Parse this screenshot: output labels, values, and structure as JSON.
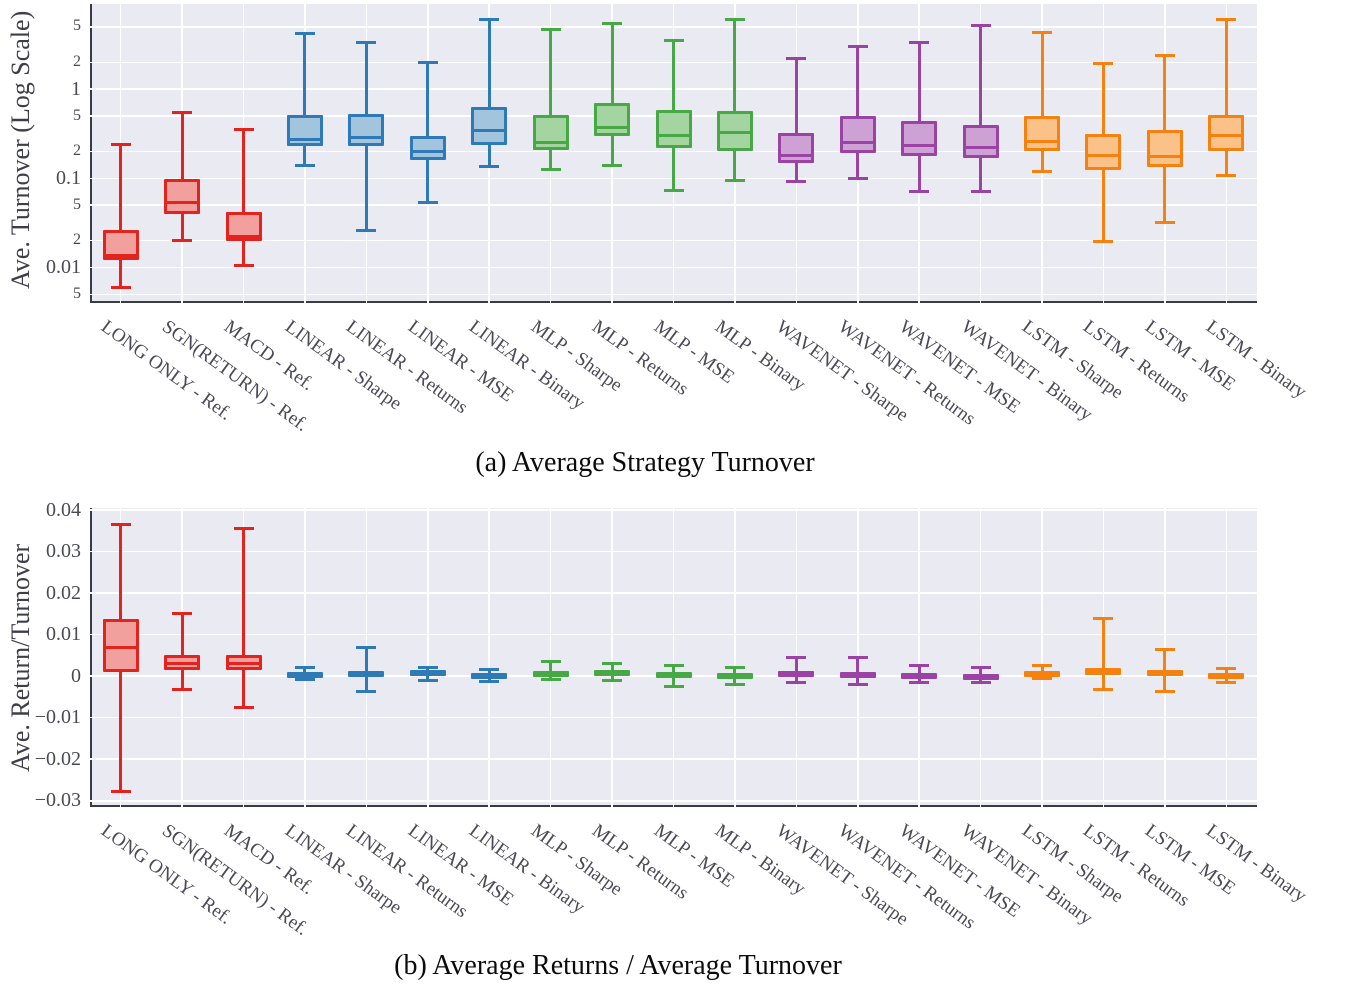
{
  "captions": {
    "a": "(a) Average Strategy Turnover",
    "b": "(b) Average Returns / Average Turnover"
  },
  "palette": {
    "red": {
      "edge": "#e2231e",
      "fill": "#f1a09e"
    },
    "blue": {
      "edge": "#2d7ab7",
      "fill": "#a2c4dd"
    },
    "green": {
      "edge": "#46a946",
      "fill": "#a4d5a1"
    },
    "purple": {
      "edge": "#9b42a5",
      "fill": "#cda1d4"
    },
    "orange": {
      "edge": "#f5820e",
      "fill": "#fac189"
    }
  },
  "categories": [
    "LONG ONLY - Ref.",
    "SGN(RETURN) - Ref.",
    "MACD - Ref.",
    "LINEAR - Sharpe",
    "LINEAR - Returns",
    "LINEAR - MSE",
    "LINEAR - Binary",
    "MLP - Sharpe",
    "MLP - Returns",
    "MLP - MSE",
    "MLP - Binary",
    "WAVENET - Sharpe",
    "WAVENET - Returns",
    "WAVENET - MSE",
    "WAVENET - Binary",
    "LSTM - Sharpe",
    "LSTM - Returns",
    "LSTM - MSE",
    "LSTM - Binary"
  ],
  "category_colors": [
    "red",
    "red",
    "red",
    "blue",
    "blue",
    "blue",
    "blue",
    "green",
    "green",
    "green",
    "green",
    "purple",
    "purple",
    "purple",
    "purple",
    "orange",
    "orange",
    "orange",
    "orange"
  ],
  "chart_data": [
    {
      "id": "turnover",
      "type": "box",
      "title": "Average Strategy Turnover",
      "ylabel": "Ave. Turnover (Log Scale)",
      "yscale": "log",
      "ylim": [
        0.004,
        9
      ],
      "grid": true,
      "yticks": [
        {
          "value": 5,
          "label": "5",
          "major": false
        },
        {
          "value": 2,
          "label": "2",
          "major": false
        },
        {
          "value": 1,
          "label": "1",
          "major": true
        },
        {
          "value": 0.5,
          "label": "5",
          "major": false
        },
        {
          "value": 0.2,
          "label": "2",
          "major": false
        },
        {
          "value": 0.1,
          "label": "0.1",
          "major": true
        },
        {
          "value": 0.05,
          "label": "5",
          "major": false
        },
        {
          "value": 0.02,
          "label": "2",
          "major": false
        },
        {
          "value": 0.01,
          "label": "0.01",
          "major": true
        },
        {
          "value": 0.005,
          "label": "5",
          "major": false
        }
      ],
      "boxes": [
        {
          "category": "LONG ONLY - Ref.",
          "color": "red",
          "whislo": 0.006,
          "q1": 0.012,
          "med": 0.0135,
          "q3": 0.026,
          "whishi": 0.24
        },
        {
          "category": "SGN(RETURN) - Ref.",
          "color": "red",
          "whislo": 0.02,
          "q1": 0.04,
          "med": 0.053,
          "q3": 0.098,
          "whishi": 0.55
        },
        {
          "category": "MACD - Ref.",
          "color": "red",
          "whislo": 0.0105,
          "q1": 0.02,
          "med": 0.022,
          "q3": 0.042,
          "whishi": 0.35
        },
        {
          "category": "LINEAR - Sharpe",
          "color": "blue",
          "whislo": 0.14,
          "q1": 0.23,
          "med": 0.27,
          "q3": 0.51,
          "whishi": 4.2
        },
        {
          "category": "LINEAR - Returns",
          "color": "blue",
          "whislo": 0.026,
          "q1": 0.23,
          "med": 0.29,
          "q3": 0.52,
          "whishi": 3.3
        },
        {
          "category": "LINEAR - MSE",
          "color": "blue",
          "whislo": 0.054,
          "q1": 0.16,
          "med": 0.2,
          "q3": 0.3,
          "whishi": 2.0
        },
        {
          "category": "LINEAR - Binary",
          "color": "blue",
          "whislo": 0.135,
          "q1": 0.235,
          "med": 0.34,
          "q3": 0.63,
          "whishi": 6.0
        },
        {
          "category": "MLP - Sharpe",
          "color": "green",
          "whislo": 0.125,
          "q1": 0.21,
          "med": 0.25,
          "q3": 0.51,
          "whishi": 4.7
        },
        {
          "category": "MLP - Returns",
          "color": "green",
          "whislo": 0.14,
          "q1": 0.3,
          "med": 0.37,
          "q3": 0.7,
          "whishi": 5.4
        },
        {
          "category": "MLP - MSE",
          "color": "green",
          "whislo": 0.073,
          "q1": 0.22,
          "med": 0.3,
          "q3": 0.58,
          "whishi": 3.5
        },
        {
          "category": "MLP - Binary",
          "color": "green",
          "whislo": 0.095,
          "q1": 0.2,
          "med": 0.33,
          "q3": 0.57,
          "whishi": 6.1
        },
        {
          "category": "WAVENET - Sharpe",
          "color": "purple",
          "whislo": 0.092,
          "q1": 0.147,
          "med": 0.18,
          "q3": 0.32,
          "whishi": 2.2
        },
        {
          "category": "WAVENET - Returns",
          "color": "purple",
          "whislo": 0.1,
          "q1": 0.19,
          "med": 0.25,
          "q3": 0.5,
          "whishi": 3.0
        },
        {
          "category": "WAVENET - MSE",
          "color": "purple",
          "whislo": 0.071,
          "q1": 0.177,
          "med": 0.235,
          "q3": 0.44,
          "whishi": 3.3
        },
        {
          "category": "WAVENET - Binary",
          "color": "purple",
          "whislo": 0.071,
          "q1": 0.168,
          "med": 0.22,
          "q3": 0.4,
          "whishi": 5.2
        },
        {
          "category": "LSTM - Sharpe",
          "color": "orange",
          "whislo": 0.12,
          "q1": 0.2,
          "med": 0.26,
          "q3": 0.5,
          "whishi": 4.3
        },
        {
          "category": "LSTM - Returns",
          "color": "orange",
          "whislo": 0.0195,
          "q1": 0.123,
          "med": 0.18,
          "q3": 0.31,
          "whishi": 1.95
        },
        {
          "category": "LSTM - MSE",
          "color": "orange",
          "whislo": 0.032,
          "q1": 0.133,
          "med": 0.177,
          "q3": 0.35,
          "whishi": 2.4
        },
        {
          "category": "LSTM - Binary",
          "color": "orange",
          "whislo": 0.108,
          "q1": 0.2,
          "med": 0.3,
          "q3": 0.51,
          "whishi": 6.1
        }
      ]
    },
    {
      "id": "return-turnover",
      "type": "box",
      "title": "Average Returns / Average Turnover",
      "ylabel": "Ave. Return/Turnover",
      "yscale": "linear",
      "ylim": [
        -0.0315,
        0.0405
      ],
      "grid": true,
      "yticks": [
        {
          "value": 0.04,
          "label": "0.04",
          "major": true
        },
        {
          "value": 0.03,
          "label": "0.03",
          "major": true
        },
        {
          "value": 0.02,
          "label": "0.02",
          "major": true
        },
        {
          "value": 0.01,
          "label": "0.01",
          "major": true
        },
        {
          "value": 0,
          "label": "0",
          "major": true
        },
        {
          "value": -0.01,
          "label": "−0.01",
          "major": true
        },
        {
          "value": -0.02,
          "label": "−0.02",
          "major": true
        },
        {
          "value": -0.03,
          "label": "−0.03",
          "major": true
        }
      ],
      "boxes": [
        {
          "category": "LONG ONLY - Ref.",
          "color": "red",
          "whislo": -0.0278,
          "q1": 0.001,
          "med": 0.007,
          "q3": 0.0138,
          "whishi": 0.0365
        },
        {
          "category": "SGN(RETURN) - Ref.",
          "color": "red",
          "whislo": -0.0033,
          "q1": 0.0015,
          "med": 0.003,
          "q3": 0.005,
          "whishi": 0.015
        },
        {
          "category": "MACD - Ref.",
          "color": "red",
          "whislo": -0.0076,
          "q1": 0.0015,
          "med": 0.003,
          "q3": 0.005,
          "whishi": 0.0355
        },
        {
          "category": "LINEAR - Sharpe",
          "color": "blue",
          "whislo": -0.0007,
          "q1": 0.0001,
          "med": 0.0005,
          "q3": 0.001,
          "whishi": 0.002
        },
        {
          "category": "LINEAR - Returns",
          "color": "blue",
          "whislo": -0.0036,
          "q1": 0.0001,
          "med": 0.0006,
          "q3": 0.0012,
          "whishi": 0.007
        },
        {
          "category": "LINEAR - MSE",
          "color": "blue",
          "whislo": -0.001,
          "q1": 0.0002,
          "med": 0.0008,
          "q3": 0.0015,
          "whishi": 0.0022
        },
        {
          "category": "LINEAR - Binary",
          "color": "blue",
          "whislo": -0.0012,
          "q1": 0.0,
          "med": 0.0004,
          "q3": 0.0008,
          "whishi": 0.0016
        },
        {
          "category": "MLP - Sharpe",
          "color": "green",
          "whislo": -0.0008,
          "q1": 0.0001,
          "med": 0.0006,
          "q3": 0.0012,
          "whishi": 0.0035
        },
        {
          "category": "MLP - Returns",
          "color": "green",
          "whislo": -0.001,
          "q1": 0.0,
          "med": 0.0007,
          "q3": 0.0015,
          "whishi": 0.003
        },
        {
          "category": "MLP - MSE",
          "color": "green",
          "whislo": -0.0025,
          "q1": -0.0002,
          "med": 0.0005,
          "q3": 0.001,
          "whishi": 0.0025
        },
        {
          "category": "MLP - Binary",
          "color": "green",
          "whislo": -0.002,
          "q1": -0.0003,
          "med": 0.0003,
          "q3": 0.0007,
          "whishi": 0.002
        },
        {
          "category": "WAVENET - Sharpe",
          "color": "purple",
          "whislo": -0.0015,
          "q1": 0.0,
          "med": 0.0006,
          "q3": 0.0012,
          "whishi": 0.0045
        },
        {
          "category": "WAVENET - Returns",
          "color": "purple",
          "whislo": -0.002,
          "q1": -0.0002,
          "med": 0.0005,
          "q3": 0.001,
          "whishi": 0.0045
        },
        {
          "category": "WAVENET - MSE",
          "color": "purple",
          "whislo": -0.0015,
          "q1": -0.0003,
          "med": 0.0003,
          "q3": 0.0008,
          "whishi": 0.0025
        },
        {
          "category": "WAVENET - Binary",
          "color": "purple",
          "whislo": -0.0015,
          "q1": -0.0005,
          "med": 0.0002,
          "q3": 0.0006,
          "whishi": 0.002
        },
        {
          "category": "LSTM - Sharpe",
          "color": "orange",
          "whislo": -0.0005,
          "q1": 0.0001,
          "med": 0.0006,
          "q3": 0.0012,
          "whishi": 0.0025
        },
        {
          "category": "LSTM - Returns",
          "color": "orange",
          "whislo": -0.0032,
          "q1": 0.0002,
          "med": 0.001,
          "q3": 0.002,
          "whishi": 0.014
        },
        {
          "category": "LSTM - MSE",
          "color": "orange",
          "whislo": -0.0036,
          "q1": 0.0,
          "med": 0.0007,
          "q3": 0.0015,
          "whishi": 0.0065
        },
        {
          "category": "LSTM - Binary",
          "color": "orange",
          "whislo": -0.0015,
          "q1": -0.0003,
          "med": 0.0003,
          "q3": 0.0008,
          "whishi": 0.0018
        }
      ]
    }
  ]
}
